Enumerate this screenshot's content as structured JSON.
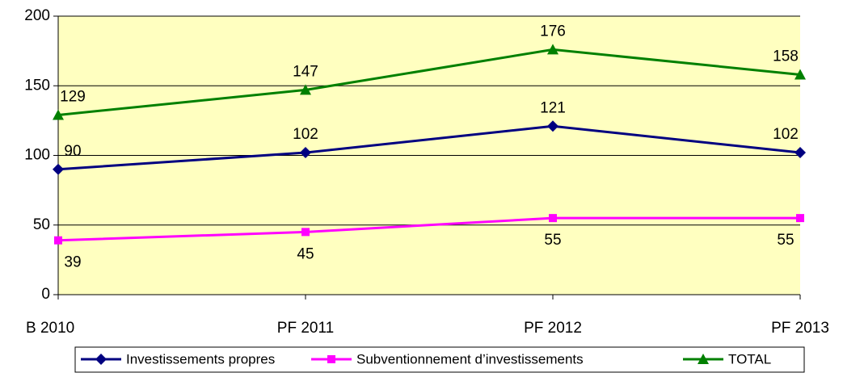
{
  "chart_data": {
    "type": "line",
    "categories": [
      "B 2010",
      "PF 2011",
      "PF 2012",
      "PF 2013"
    ],
    "series": [
      {
        "name": "Investissements propres",
        "color": "#000080",
        "marker": "diamond",
        "values": [
          90,
          102,
          121,
          102
        ]
      },
      {
        "name": "Subventionnement d’investissements",
        "color": "#ff00ff",
        "marker": "square",
        "values": [
          39,
          45,
          55,
          55
        ]
      },
      {
        "name": "TOTAL",
        "color": "#008000",
        "marker": "triangle",
        "values": [
          129,
          147,
          176,
          158
        ]
      }
    ],
    "ylim": [
      0,
      200
    ],
    "yticks": [
      0,
      50,
      100,
      150,
      200
    ],
    "grid": true,
    "background": "#ffffc0"
  }
}
